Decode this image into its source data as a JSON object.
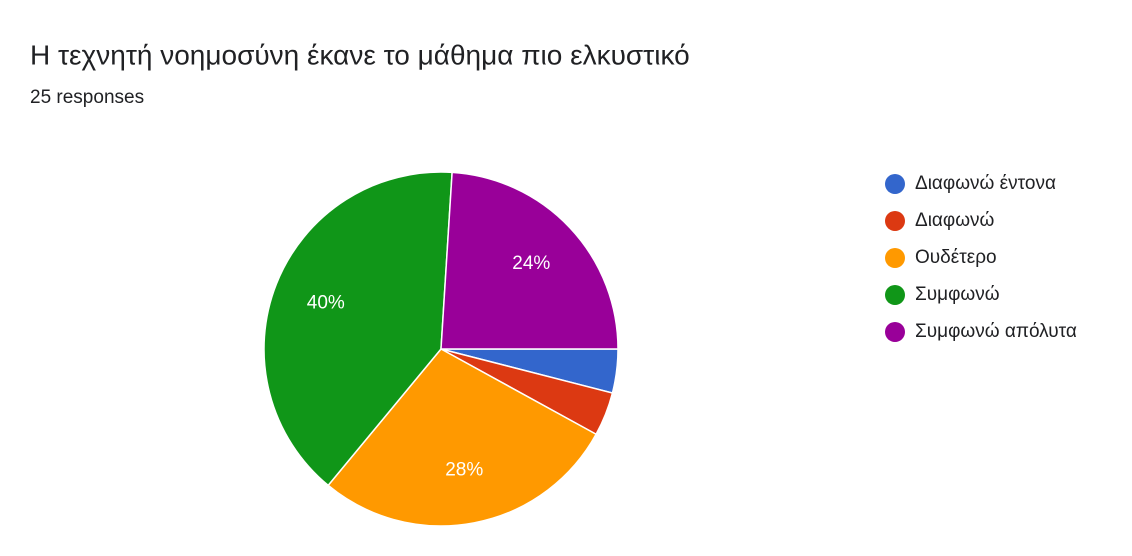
{
  "chart_data": {
    "type": "pie",
    "title": "Η τεχνητή νοημοσύνη έκανε το μάθημα πιο ελκυστικό",
    "subtitle": "25 responses",
    "categories": [
      "Διαφωνώ έντονα",
      "Διαφωνώ",
      "Ουδέτερο",
      "Συμφωνώ",
      "Συμφωνώ απόλυτα"
    ],
    "values": [
      4,
      4,
      28,
      40,
      24
    ],
    "value_labels": [
      null,
      null,
      "28%",
      "40%",
      "24%"
    ],
    "colors": [
      "#3366cc",
      "#dc3912",
      "#ff9900",
      "#109618",
      "#990099"
    ],
    "legend": "right"
  }
}
